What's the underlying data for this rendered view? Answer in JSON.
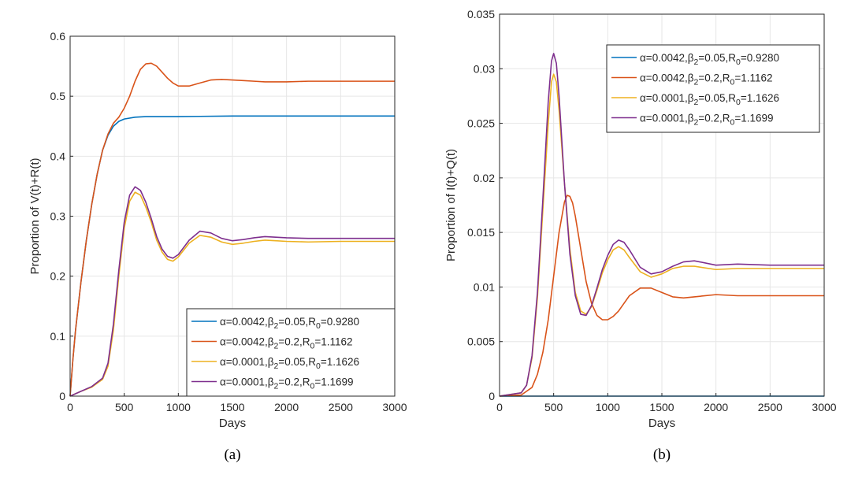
{
  "chart_data": [
    {
      "type": "line",
      "caption": "(a)",
      "xlabel": "Days",
      "ylabel": "Proportion of V(t)+R(t)",
      "xlim": [
        0,
        3000
      ],
      "ylim": [
        0,
        0.6
      ],
      "xticks": [
        "0",
        "500",
        "1000",
        "1500",
        "2000",
        "2500",
        "3000"
      ],
      "yticks": [
        "0",
        "0.1",
        "0.2",
        "0.3",
        "0.4",
        "0.5",
        "0.6"
      ],
      "grid": true,
      "legend_position": "bottom-right",
      "series": [
        {
          "name": "α=0.0042,β2=0.05,R0=0.9280",
          "color": "#0072BD",
          "x": [
            0,
            25,
            50,
            100,
            150,
            200,
            250,
            300,
            350,
            400,
            450,
            500,
            600,
            700,
            800,
            1000,
            1500,
            2000,
            2500,
            3000
          ],
          "y": [
            0,
            0.06,
            0.11,
            0.19,
            0.26,
            0.32,
            0.37,
            0.41,
            0.435,
            0.45,
            0.458,
            0.462,
            0.465,
            0.466,
            0.466,
            0.466,
            0.467,
            0.467,
            0.467,
            0.467
          ]
        },
        {
          "name": "α=0.0042,β2=0.2,R0=1.1162",
          "color": "#D95319",
          "x": [
            0,
            25,
            50,
            100,
            150,
            200,
            250,
            300,
            350,
            400,
            450,
            500,
            550,
            600,
            650,
            700,
            750,
            800,
            850,
            900,
            950,
            1000,
            1100,
            1200,
            1300,
            1400,
            1500,
            1600,
            1700,
            1800,
            2000,
            2200,
            2500,
            3000
          ],
          "y": [
            0,
            0.06,
            0.11,
            0.19,
            0.26,
            0.32,
            0.37,
            0.41,
            0.437,
            0.455,
            0.465,
            0.48,
            0.5,
            0.525,
            0.545,
            0.554,
            0.555,
            0.55,
            0.54,
            0.53,
            0.522,
            0.517,
            0.517,
            0.522,
            0.527,
            0.528,
            0.527,
            0.526,
            0.525,
            0.524,
            0.524,
            0.525,
            0.525,
            0.525
          ]
        },
        {
          "name": "α=0.0001,β2=0.05,R0=1.1626",
          "color": "#EDB120",
          "x": [
            0,
            100,
            200,
            300,
            350,
            400,
            450,
            500,
            550,
            600,
            650,
            700,
            750,
            800,
            850,
            900,
            950,
            1000,
            1100,
            1200,
            1300,
            1400,
            1500,
            1600,
            1700,
            1800,
            1900,
            2000,
            2200,
            2500,
            3000
          ],
          "y": [
            0,
            0.008,
            0.015,
            0.028,
            0.05,
            0.11,
            0.2,
            0.28,
            0.325,
            0.34,
            0.335,
            0.315,
            0.29,
            0.26,
            0.24,
            0.228,
            0.225,
            0.232,
            0.255,
            0.268,
            0.265,
            0.257,
            0.253,
            0.255,
            0.258,
            0.26,
            0.259,
            0.258,
            0.257,
            0.258,
            0.258
          ]
        },
        {
          "name": "α=0.0001,β2=0.2,R0=1.1699",
          "color": "#7E2F8E",
          "x": [
            0,
            100,
            200,
            300,
            350,
            400,
            450,
            500,
            550,
            600,
            650,
            700,
            750,
            800,
            850,
            900,
            950,
            1000,
            1100,
            1200,
            1300,
            1400,
            1500,
            1600,
            1700,
            1800,
            1900,
            2000,
            2200,
            2500,
            3000
          ],
          "y": [
            0,
            0.008,
            0.016,
            0.03,
            0.055,
            0.12,
            0.21,
            0.29,
            0.335,
            0.349,
            0.343,
            0.323,
            0.296,
            0.266,
            0.245,
            0.233,
            0.23,
            0.236,
            0.26,
            0.275,
            0.272,
            0.263,
            0.259,
            0.261,
            0.264,
            0.266,
            0.265,
            0.264,
            0.263,
            0.263,
            0.263
          ]
        }
      ]
    },
    {
      "type": "line",
      "caption": "(b)",
      "xlabel": "Days",
      "ylabel": "Proportion of I(t)+Q(t)",
      "xlim": [
        0,
        3000
      ],
      "ylim": [
        0,
        0.035
      ],
      "xticks": [
        "0",
        "500",
        "1000",
        "1500",
        "2000",
        "2500",
        "3000"
      ],
      "yticks": [
        "0",
        "0.005",
        "0.01",
        "0.015",
        "0.02",
        "0.025",
        "0.03",
        "0.035"
      ],
      "grid": true,
      "legend_position": "top-right",
      "series": [
        {
          "name": "α=0.0042,β2=0.05,R0=0.9280",
          "color": "#0072BD",
          "x": [
            0,
            500,
            1000,
            1500,
            2000,
            2500,
            3000
          ],
          "y": [
            0,
            0,
            0,
            0,
            0,
            0,
            0
          ]
        },
        {
          "name": "α=0.0042,β2=0.2,R0=1.1162",
          "color": "#D95319",
          "x": [
            0,
            200,
            300,
            350,
            400,
            450,
            500,
            550,
            600,
            625,
            650,
            675,
            700,
            750,
            800,
            850,
            900,
            950,
            1000,
            1050,
            1100,
            1150,
            1200,
            1300,
            1400,
            1500,
            1600,
            1700,
            1800,
            2000,
            2200,
            2500,
            3000
          ],
          "y": [
            0,
            0.0001,
            0.0008,
            0.002,
            0.004,
            0.007,
            0.011,
            0.015,
            0.0178,
            0.0184,
            0.0183,
            0.0177,
            0.0165,
            0.0135,
            0.0105,
            0.0085,
            0.0074,
            0.007,
            0.007,
            0.0073,
            0.0078,
            0.0085,
            0.0092,
            0.0099,
            0.0099,
            0.0095,
            0.0091,
            0.009,
            0.0091,
            0.0093,
            0.0092,
            0.0092,
            0.0092
          ]
        },
        {
          "name": "α=0.0001,β2=0.05,R0=1.1626",
          "color": "#EDB120",
          "x": [
            0,
            200,
            250,
            300,
            350,
            400,
            450,
            480,
            500,
            525,
            550,
            600,
            650,
            700,
            750,
            800,
            850,
            900,
            950,
            1000,
            1050,
            1100,
            1150,
            1200,
            1300,
            1400,
            1500,
            1600,
            1700,
            1800,
            2000,
            2200,
            2500,
            3000
          ],
          "y": [
            0,
            0.0003,
            0.001,
            0.0035,
            0.009,
            0.017,
            0.025,
            0.0288,
            0.0295,
            0.0288,
            0.0262,
            0.0195,
            0.0135,
            0.0095,
            0.0078,
            0.0075,
            0.0082,
            0.0097,
            0.0113,
            0.0125,
            0.0134,
            0.0137,
            0.0134,
            0.0127,
            0.0114,
            0.0109,
            0.0112,
            0.0117,
            0.0119,
            0.0119,
            0.0116,
            0.0117,
            0.0117,
            0.0117
          ]
        },
        {
          "name": "α=0.0001,β2=0.2,R0=1.1699",
          "color": "#7E2F8E",
          "x": [
            0,
            200,
            250,
            300,
            350,
            400,
            450,
            480,
            500,
            525,
            550,
            600,
            650,
            700,
            750,
            800,
            850,
            900,
            950,
            1000,
            1050,
            1100,
            1150,
            1200,
            1300,
            1400,
            1500,
            1600,
            1700,
            1800,
            2000,
            2200,
            2500,
            3000
          ],
          "y": [
            0,
            0.0003,
            0.001,
            0.0037,
            0.0095,
            0.018,
            0.027,
            0.0307,
            0.0314,
            0.0305,
            0.0275,
            0.0195,
            0.013,
            0.0092,
            0.0075,
            0.0074,
            0.0083,
            0.0099,
            0.0116,
            0.0129,
            0.0139,
            0.0143,
            0.0141,
            0.0134,
            0.0118,
            0.0112,
            0.0114,
            0.0119,
            0.0123,
            0.0124,
            0.012,
            0.0121,
            0.012,
            0.012
          ]
        }
      ]
    }
  ]
}
